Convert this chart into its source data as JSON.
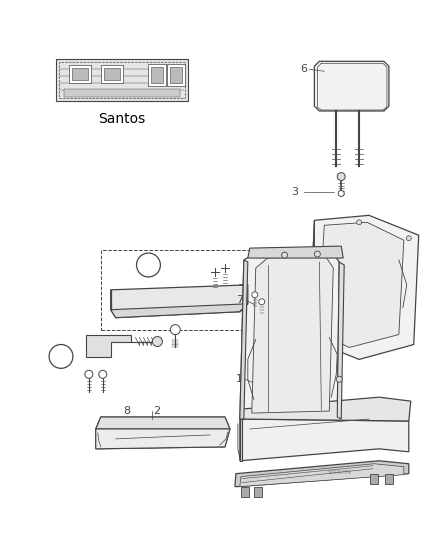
{
  "background_color": "#ffffff",
  "line_color": "#444444",
  "label_color": "#444444",
  "fabric_label_text": "Santos",
  "figsize": [
    4.38,
    5.33
  ],
  "dpi": 100,
  "xlim": [
    0,
    438
  ],
  "ylim": [
    0,
    533
  ]
}
